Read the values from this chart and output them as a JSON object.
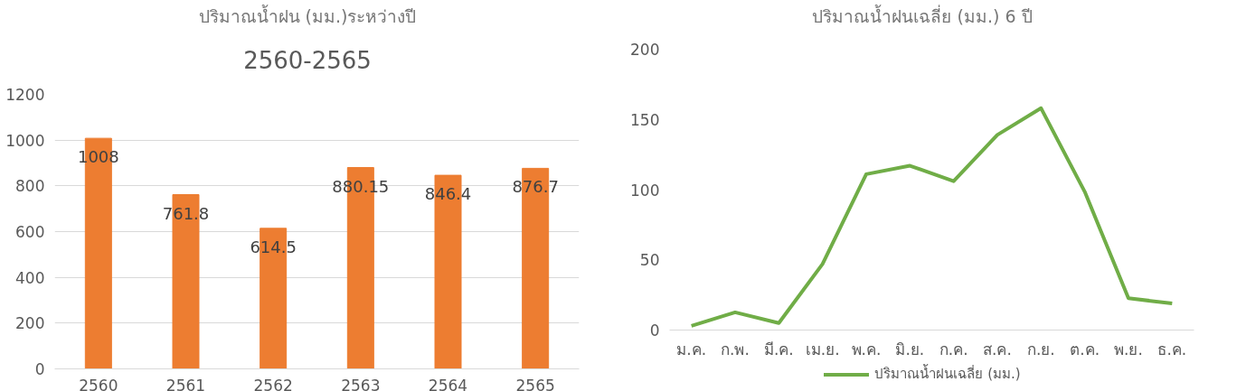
{
  "chart_data": [
    {
      "type": "bar",
      "title": "ปริมาณน้ำฝน (มม.)ระหว่างปี\n2560-2565",
      "categories": [
        "2560",
        "2561",
        "2562",
        "2563",
        "2564",
        "2565"
      ],
      "series": [
        {
          "color": "#ed7d31",
          "values": [
            1008,
            761.8,
            614.5,
            880.15,
            846.4,
            876.7
          ]
        }
      ],
      "ylim": [
        0,
        1200
      ],
      "yticks": [
        0,
        200,
        400,
        600,
        800,
        1000,
        1200
      ],
      "grid": "y",
      "data_labels": true,
      "legend": false
    },
    {
      "type": "line",
      "title": "ปริมาณน้ำฝนเฉลี่ย (มม.) 6 ปี",
      "categories": [
        "ม.ค.",
        "ก.พ.",
        "มี.ค.",
        "เม.ย.",
        "พ.ค.",
        "มิ.ย.",
        "ก.ค.",
        "ส.ค.",
        "ก.ย.",
        "ต.ค.",
        "พ.ย.",
        "ธ.ค."
      ],
      "series": [
        {
          "name": "ปริมาณน้ำฝนเฉลี่ย (มม.)",
          "color": "#70ad47",
          "values": [
            3,
            12.6,
            5,
            47,
            111,
            117,
            106,
            139,
            158,
            98.5,
            22.6,
            19
          ]
        }
      ],
      "ylim": [
        0,
        200
      ],
      "yticks": [
        0,
        50,
        100,
        150,
        200
      ],
      "grid": false,
      "legend": "bottom",
      "marker": "none",
      "line_style": "solid"
    }
  ]
}
